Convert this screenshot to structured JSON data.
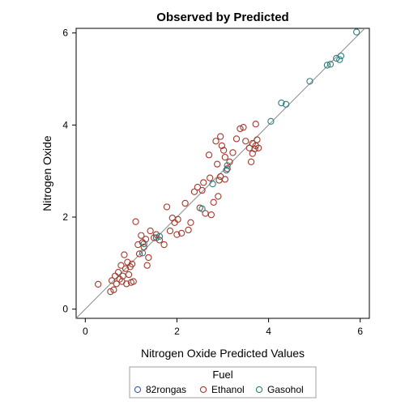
{
  "chart_data": {
    "type": "scatter",
    "title": "Observed by Predicted",
    "xlabel": "Nitrogen Oxide Predicted Values",
    "ylabel": "Nitrogen Oxide",
    "xlim": [
      -0.2,
      6.2
    ],
    "ylim": [
      -0.2,
      6.1
    ],
    "xticks": [
      "0",
      "2",
      "4",
      "6"
    ],
    "yticks": [
      "0",
      "2",
      "4",
      "6"
    ],
    "grid": false,
    "reference_line": "y = x",
    "legend": {
      "title": "Fuel",
      "placement": "bottom"
    },
    "series": [
      {
        "name": "82rongas",
        "color": "#3b5ea8",
        "points": []
      },
      {
        "name": "Ethanol",
        "color": "#a23a2e",
        "points": [
          [
            0.28,
            0.54
          ],
          [
            0.55,
            0.38
          ],
          [
            0.58,
            0.62
          ],
          [
            0.62,
            0.42
          ],
          [
            0.65,
            0.72
          ],
          [
            0.68,
            0.55
          ],
          [
            0.72,
            0.8
          ],
          [
            0.75,
            0.65
          ],
          [
            0.78,
            0.95
          ],
          [
            0.8,
            0.6
          ],
          [
            0.82,
            0.72
          ],
          [
            0.85,
            1.18
          ],
          [
            0.88,
            0.88
          ],
          [
            0.9,
            0.55
          ],
          [
            0.92,
            1.02
          ],
          [
            0.95,
            0.75
          ],
          [
            0.98,
            0.92
          ],
          [
            1.0,
            0.58
          ],
          [
            1.02,
            0.98
          ],
          [
            1.05,
            0.6
          ],
          [
            1.1,
            1.9
          ],
          [
            1.15,
            1.4
          ],
          [
            1.18,
            1.2
          ],
          [
            1.22,
            1.6
          ],
          [
            1.25,
            1.45
          ],
          [
            1.28,
            1.35
          ],
          [
            1.32,
            1.52
          ],
          [
            1.35,
            0.95
          ],
          [
            1.38,
            1.12
          ],
          [
            1.42,
            1.7
          ],
          [
            1.5,
            1.55
          ],
          [
            1.55,
            1.62
          ],
          [
            1.62,
            1.5
          ],
          [
            1.72,
            1.4
          ],
          [
            1.78,
            2.22
          ],
          [
            1.85,
            1.7
          ],
          [
            1.9,
            1.98
          ],
          [
            1.95,
            1.88
          ],
          [
            2.0,
            1.62
          ],
          [
            2.02,
            1.95
          ],
          [
            2.1,
            1.65
          ],
          [
            2.18,
            2.3
          ],
          [
            2.25,
            1.72
          ],
          [
            2.3,
            1.88
          ],
          [
            2.38,
            2.55
          ],
          [
            2.45,
            2.65
          ],
          [
            2.5,
            2.2
          ],
          [
            2.58,
            2.75
          ],
          [
            2.62,
            2.08
          ],
          [
            2.7,
            3.35
          ],
          [
            2.75,
            2.05
          ],
          [
            2.8,
            2.32
          ],
          [
            2.85,
            3.65
          ],
          [
            2.88,
            3.15
          ],
          [
            2.92,
            2.8
          ],
          [
            2.95,
            3.75
          ],
          [
            2.98,
            3.55
          ],
          [
            3.02,
            3.45
          ],
          [
            3.05,
            3.3
          ],
          [
            3.1,
            3.05
          ],
          [
            3.15,
            3.2
          ],
          [
            3.22,
            3.4
          ],
          [
            3.3,
            3.7
          ],
          [
            3.38,
            3.92
          ],
          [
            3.45,
            3.95
          ],
          [
            3.5,
            3.65
          ],
          [
            3.58,
            3.5
          ],
          [
            3.62,
            3.2
          ],
          [
            3.65,
            3.6
          ],
          [
            3.7,
            3.48
          ],
          [
            3.72,
            3.55
          ],
          [
            3.72,
            4.02
          ],
          [
            3.75,
            3.68
          ],
          [
            3.78,
            3.5
          ],
          [
            3.65,
            3.38
          ],
          [
            2.9,
            2.45
          ],
          [
            2.72,
            2.85
          ],
          [
            2.55,
            2.58
          ],
          [
            3.05,
            2.82
          ],
          [
            2.95,
            2.88
          ]
        ]
      },
      {
        "name": "Gasohol",
        "color": "#2f7d7d",
        "points": [
          [
            1.25,
            1.22
          ],
          [
            1.28,
            1.42
          ],
          [
            1.55,
            1.55
          ],
          [
            1.62,
            1.58
          ],
          [
            2.55,
            2.18
          ],
          [
            2.78,
            2.72
          ],
          [
            3.08,
            3.02
          ],
          [
            3.1,
            3.12
          ],
          [
            4.05,
            4.08
          ],
          [
            4.28,
            4.48
          ],
          [
            4.38,
            4.45
          ],
          [
            4.9,
            4.95
          ],
          [
            5.28,
            5.3
          ],
          [
            5.35,
            5.32
          ],
          [
            5.48,
            5.45
          ],
          [
            5.55,
            5.42
          ],
          [
            5.58,
            5.5
          ],
          [
            5.92,
            6.02
          ]
        ]
      }
    ]
  }
}
